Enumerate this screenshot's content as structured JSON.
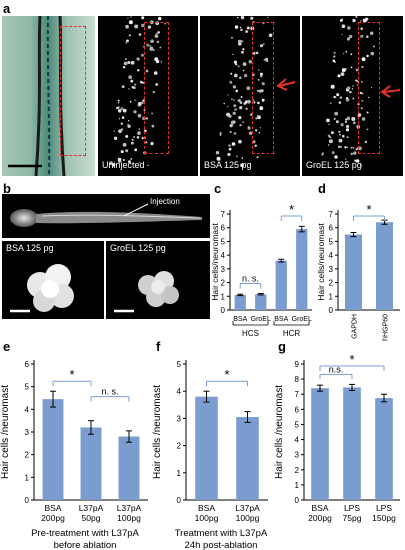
{
  "panel_letters": {
    "a": "a",
    "b": "b",
    "c": "c",
    "d": "d",
    "e": "e",
    "f": "f",
    "g": "g"
  },
  "panel_a": {
    "labels": [
      "Uninjected",
      "BSA 125 pg",
      "GroEL 125 pg"
    ],
    "arrow_color": "#e8332a",
    "box_color": "#e8332a"
  },
  "panel_b": {
    "injection_label": "Injection",
    "cell_labels": [
      "BSA 125 pg",
      "GroEL 125 pg"
    ]
  },
  "colors": {
    "bar": "#7b9ccf",
    "bracket": "#7a9fd6"
  },
  "chart_data": [
    {
      "id": "c",
      "type": "bar",
      "ylabel": "Hair cells/neuromast",
      "ylim": [
        0,
        7
      ],
      "yticks": [
        0,
        1,
        2,
        3,
        4,
        5,
        6,
        7
      ],
      "categories": [
        "BSA",
        "GroEL",
        "BSA",
        "GroEL"
      ],
      "groups": [
        "HCS",
        "HCR"
      ],
      "values": [
        1.1,
        1.15,
        3.6,
        5.9
      ],
      "errors": [
        0.05,
        0.05,
        0.1,
        0.2
      ],
      "annotations": [
        {
          "from": 0,
          "to": 1,
          "text": "n. s."
        },
        {
          "from": 2,
          "to": 3,
          "text": "*"
        }
      ]
    },
    {
      "id": "d",
      "type": "bar",
      "ylabel": "Hair cells/neuromast",
      "ylim": [
        0,
        7
      ],
      "yticks": [
        0,
        1,
        2,
        3,
        4,
        5,
        6,
        7
      ],
      "categories": [
        "GAPDH",
        "hHGP60"
      ],
      "values": [
        5.5,
        6.4
      ],
      "errors": [
        0.15,
        0.15
      ],
      "annotations": [
        {
          "from": 0,
          "to": 1,
          "text": "*"
        }
      ]
    },
    {
      "id": "e",
      "type": "bar",
      "ylabel": "Hair cells /neuromast",
      "ylim": [
        0,
        6
      ],
      "yticks": [
        0,
        1,
        2,
        3,
        4,
        5,
        6
      ],
      "categories": [
        "BSA\n200pg",
        "L37pA\n50pg",
        "L37pA\n100pg"
      ],
      "values": [
        4.45,
        3.2,
        2.8
      ],
      "errors": [
        0.35,
        0.3,
        0.25
      ],
      "annotations": [
        {
          "from": 0,
          "to": 1,
          "text": "*"
        },
        {
          "from": 1,
          "to": 2,
          "text": "n. s."
        }
      ],
      "caption": [
        "Pre-treatment with L37pA",
        "before ablation"
      ]
    },
    {
      "id": "f",
      "type": "bar",
      "ylabel": "Hair cells /neuromast",
      "ylim": [
        0,
        5
      ],
      "yticks": [
        0,
        1,
        2,
        3,
        4,
        5
      ],
      "categories": [
        "BSA\n100pg",
        "L37pA\n100pg"
      ],
      "values": [
        3.8,
        3.05
      ],
      "errors": [
        0.2,
        0.2
      ],
      "annotations": [
        {
          "from": 0,
          "to": 1,
          "text": "*"
        }
      ],
      "caption": [
        "Treatment with L37pA",
        "24h post-ablation"
      ]
    },
    {
      "id": "g",
      "type": "bar",
      "ylabel": "Hair cells /neuromast",
      "ylim": [
        0,
        9
      ],
      "yticks": [
        0,
        1,
        2,
        3,
        4,
        5,
        6,
        7,
        8,
        9
      ],
      "categories": [
        "BSA\n200pg",
        "LPS\n75pg",
        "LPS\n150pg"
      ],
      "values": [
        7.4,
        7.45,
        6.75
      ],
      "errors": [
        0.2,
        0.2,
        0.25
      ],
      "annotations": [
        {
          "from": 0,
          "to": 1,
          "text": "n.s."
        },
        {
          "from": 0,
          "to": 2,
          "text": "*"
        }
      ]
    }
  ]
}
